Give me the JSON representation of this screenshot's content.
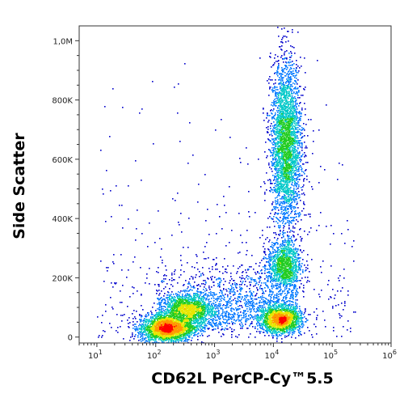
{
  "chart_data": {
    "type": "scatter",
    "subtype": "flow-cytometry-density-dot-plot",
    "xlabel": "CD62L PerCP-Cy™5.5",
    "ylabel": "Side Scatter",
    "x_scale": "log",
    "xlim": [
      5,
      1000000
    ],
    "ylim": [
      -20000,
      1050000
    ],
    "x_ticks": [
      {
        "base": "10",
        "exp": "1",
        "value": 10
      },
      {
        "base": "10",
        "exp": "2",
        "value": 100
      },
      {
        "base": "10",
        "exp": "3",
        "value": 1000
      },
      {
        "base": "10",
        "exp": "4",
        "value": 10000
      },
      {
        "base": "10",
        "exp": "5",
        "value": 100000
      },
      {
        "base": "10",
        "exp": "6",
        "value": 1000000
      }
    ],
    "y_ticks": [
      {
        "label": "0",
        "value": 0
      },
      {
        "label": "200K",
        "value": 200000
      },
      {
        "label": "400K",
        "value": 400000
      },
      {
        "label": "600K",
        "value": 600000
      },
      {
        "label": "800K",
        "value": 800000
      },
      {
        "label": "1,0M",
        "value": 1000000
      }
    ],
    "grid": false,
    "legend": "none",
    "density_colors": [
      "#0000cc",
      "#0077ff",
      "#00c8c8",
      "#22cc22",
      "#e6e600",
      "#ff9900",
      "#ff0000"
    ],
    "populations": [
      {
        "x_center": 150,
        "y_center": 30000,
        "relative_density": 1.0
      },
      {
        "x_center": 350,
        "y_center": 95000,
        "relative_density": 0.7
      },
      {
        "x_center": 13000,
        "y_center": 60000,
        "relative_density": 0.9
      },
      {
        "x_center": 15000,
        "y_center": 245000,
        "relative_density": 0.55
      },
      {
        "x_center": 16000,
        "y_center": 650000,
        "relative_density": 0.75
      }
    ]
  }
}
